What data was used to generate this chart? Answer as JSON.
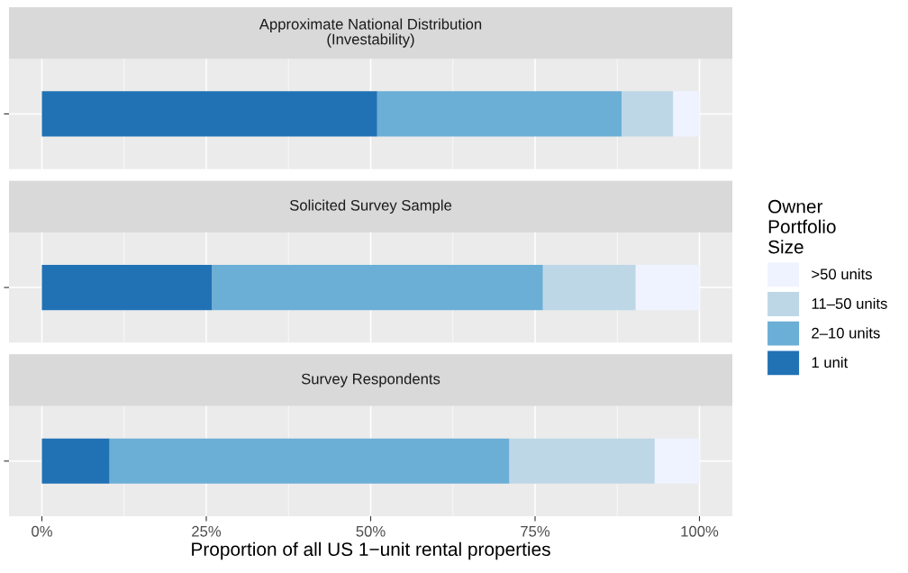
{
  "chart_data": {
    "type": "bar",
    "orientation": "horizontal",
    "stacked": true,
    "categories": [
      "Approximate National Distribution\n(Investability)",
      "Solicited Survey Sample",
      "Survey Respondents"
    ],
    "xlim": [
      -5,
      105
    ],
    "xticks": [
      {
        "value": 0,
        "label": "0%"
      },
      {
        "value": 25,
        "label": "25%"
      },
      {
        "value": 50,
        "label": "50%"
      },
      {
        "value": 75,
        "label": "75%"
      },
      {
        "value": 100,
        "label": "100%"
      }
    ],
    "xlabel": "Proportion of all US 1−unit rental properties",
    "grid": true,
    "legend": "right",
    "legend_title": "Owner\nPortfolio\nSize",
    "series": [
      {
        "name": "1 unit",
        "color": "#2171b5",
        "values": [
          51.0,
          25.9,
          10.3
        ]
      },
      {
        "name": "2–10 units",
        "color": "#6baed6",
        "values": [
          37.2,
          50.3,
          60.8
        ]
      },
      {
        "name": "11–50 units",
        "color": "#bdd7e7",
        "values": [
          7.8,
          14.1,
          22.1
        ]
      },
      {
        "name": ">50 units",
        "color": "#eff3ff",
        "values": [
          4.0,
          9.7,
          6.8
        ]
      }
    ]
  }
}
